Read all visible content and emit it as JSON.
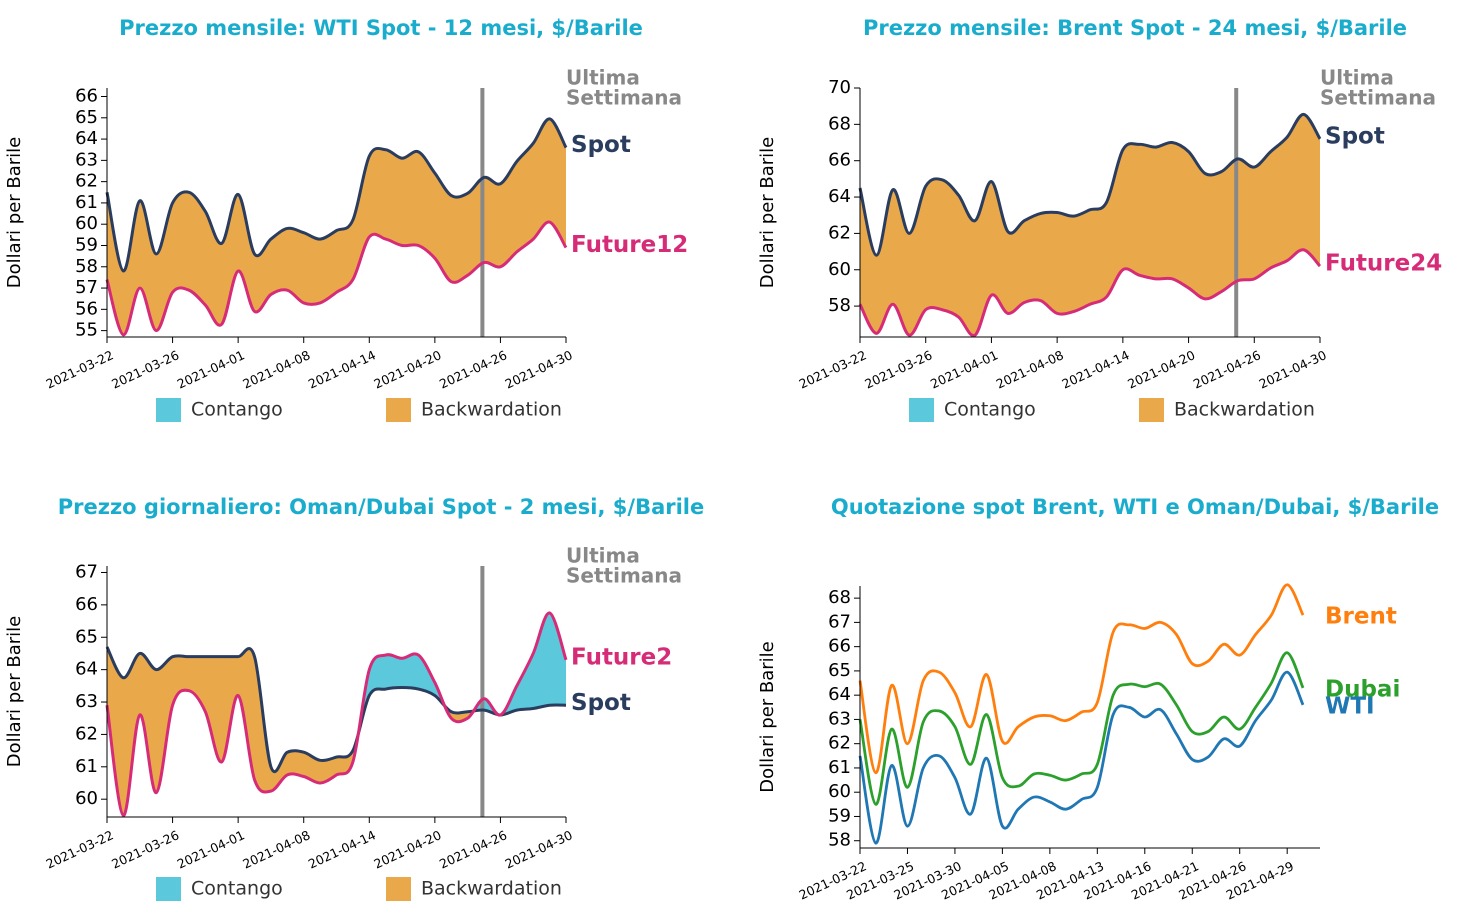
{
  "chart_data": [
    {
      "type": "spread",
      "title": "Prezzo mensile: WTI Spot - 12 mesi, $/Barile",
      "ylabel": "Dollari per Barile",
      "annotation": [
        "Ultima",
        "Settimana"
      ],
      "categories": [
        "2021-03-22",
        null,
        null,
        null,
        "2021-03-26",
        null,
        null,
        null,
        "2021-04-01",
        null,
        null,
        null,
        "2021-04-08",
        null,
        null,
        null,
        "2021-04-14",
        null,
        null,
        null,
        "2021-04-20",
        null,
        null,
        null,
        "2021-04-26",
        null,
        null,
        null,
        "2021-04-30"
      ],
      "series": [
        {
          "name": "Spot",
          "color": "#2b3d5e",
          "values": [
            61.5,
            57.8,
            61.1,
            58.6,
            61.0,
            61.5,
            60.6,
            59.1,
            61.4,
            58.6,
            59.3,
            59.8,
            59.6,
            59.3,
            59.7,
            60.2,
            63.2,
            63.5,
            63.1,
            63.4,
            62.4,
            61.35,
            61.45,
            62.2,
            61.9,
            62.95,
            63.8,
            64.95,
            63.6
          ]
        },
        {
          "name": "Future12",
          "color": "#d62c78",
          "values": [
            57.4,
            54.8,
            57.0,
            55.0,
            56.8,
            56.9,
            56.2,
            55.3,
            57.8,
            55.9,
            56.7,
            56.9,
            56.3,
            56.3,
            56.8,
            57.4,
            59.4,
            59.3,
            59.0,
            59.0,
            58.4,
            57.3,
            57.6,
            58.2,
            58.0,
            58.7,
            59.3,
            60.1,
            58.9
          ]
        }
      ],
      "legend": [
        {
          "label": "Contango",
          "color": "#5bc8dc"
        },
        {
          "label": "Backwardation",
          "color": "#e9a94b"
        }
      ],
      "ylim": [
        54.7,
        66.4
      ],
      "yticks": [
        55,
        56,
        57,
        58,
        59,
        60,
        61,
        62,
        63,
        64,
        65,
        66
      ]
    },
    {
      "type": "spread",
      "title": "Prezzo mensile: Brent Spot - 24 mesi, $/Barile",
      "ylabel": "Dollari per Barile",
      "annotation": [
        "Ultima",
        "Settimana"
      ],
      "categories": [
        "2021-03-22",
        null,
        null,
        null,
        "2021-03-26",
        null,
        null,
        null,
        "2021-04-01",
        null,
        null,
        null,
        "2021-04-08",
        null,
        null,
        null,
        "2021-04-14",
        null,
        null,
        null,
        "2021-04-20",
        null,
        null,
        null,
        "2021-04-26",
        null,
        null,
        null,
        "2021-04-30"
      ],
      "series": [
        {
          "name": "Spot",
          "color": "#2b3d5e",
          "values": [
            64.5,
            60.8,
            64.4,
            62.0,
            64.6,
            64.95,
            64.1,
            62.7,
            64.85,
            62.1,
            62.7,
            63.1,
            63.15,
            62.95,
            63.3,
            63.7,
            66.6,
            66.9,
            66.75,
            67.0,
            66.5,
            65.3,
            65.4,
            66.1,
            65.65,
            66.5,
            67.3,
            68.55,
            67.2
          ]
        },
        {
          "name": "Future24",
          "color": "#d62c78",
          "values": [
            58.1,
            56.5,
            58.1,
            56.4,
            57.8,
            57.8,
            57.4,
            56.4,
            58.6,
            57.6,
            58.2,
            58.3,
            57.6,
            57.7,
            58.1,
            58.5,
            60.0,
            59.7,
            59.5,
            59.5,
            59.0,
            58.4,
            58.8,
            59.4,
            59.5,
            60.1,
            60.5,
            61.1,
            60.2
          ]
        }
      ],
      "legend": [
        {
          "label": "Contango",
          "color": "#5bc8dc"
        },
        {
          "label": "Backwardation",
          "color": "#e9a94b"
        }
      ],
      "ylim": [
        56.3,
        70
      ],
      "yticks": [
        58,
        60,
        62,
        64,
        66,
        68,
        70
      ]
    },
    {
      "type": "spread",
      "title": "Prezzo giornaliero: Oman/Dubai Spot - 2 mesi, $/Barile",
      "ylabel": "Dollari per Barile",
      "annotation": [
        "Ultima",
        "Settimana"
      ],
      "categories": [
        "2021-03-22",
        null,
        null,
        null,
        "2021-03-26",
        null,
        null,
        null,
        "2021-04-01",
        null,
        null,
        null,
        "2021-04-08",
        null,
        null,
        null,
        "2021-04-14",
        null,
        null,
        null,
        "2021-04-20",
        null,
        null,
        null,
        "2021-04-26",
        null,
        null,
        null,
        "2021-04-30"
      ],
      "series": [
        {
          "name": "Spot",
          "color": "#2b3d5e",
          "values": [
            64.7,
            63.75,
            64.5,
            64.0,
            64.4,
            64.4,
            64.4,
            64.4,
            64.4,
            64.4,
            61.0,
            61.45,
            61.45,
            61.2,
            61.3,
            61.5,
            63.2,
            63.4,
            63.45,
            63.4,
            63.2,
            62.7,
            62.7,
            62.75,
            62.6,
            62.75,
            62.8,
            62.9,
            62.9
          ]
        },
        {
          "name": "Future2",
          "color": "#d62c78",
          "values": [
            62.9,
            59.5,
            62.6,
            60.2,
            62.9,
            63.35,
            62.7,
            61.15,
            63.2,
            60.6,
            60.25,
            60.75,
            60.7,
            60.5,
            60.75,
            61.15,
            64.0,
            64.45,
            64.35,
            64.45,
            63.6,
            62.5,
            62.5,
            63.1,
            62.6,
            63.5,
            64.5,
            65.75,
            64.3
          ]
        }
      ],
      "legend": [
        {
          "label": "Contango",
          "color": "#5bc8dc"
        },
        {
          "label": "Backwardation",
          "color": "#e9a94b"
        }
      ],
      "ylim": [
        59.45,
        67.2
      ],
      "yticks": [
        60,
        61,
        62,
        63,
        64,
        65,
        66,
        67
      ]
    },
    {
      "type": "line",
      "title": "Quotazione spot Brent, WTI e Oman/Dubai, $/Barile",
      "ylabel": "Dollari per Barile",
      "categories": [
        "2021-03-22",
        null,
        null,
        "2021-03-25",
        null,
        null,
        "2021-03-30",
        null,
        null,
        "2021-04-05",
        null,
        null,
        "2021-04-08",
        null,
        null,
        "2021-04-13",
        null,
        null,
        "2021-04-16",
        null,
        null,
        "2021-04-21",
        null,
        null,
        "2021-04-26",
        null,
        null,
        "2021-04-29",
        null
      ],
      "series": [
        {
          "name": "Brent",
          "color": "#ff7f0e",
          "values": [
            64.6,
            60.8,
            64.4,
            62.0,
            64.6,
            64.95,
            64.1,
            62.7,
            64.85,
            62.1,
            62.7,
            63.1,
            63.15,
            62.95,
            63.3,
            63.7,
            66.6,
            66.9,
            66.75,
            67.0,
            66.5,
            65.3,
            65.4,
            66.1,
            65.65,
            66.5,
            67.3,
            68.55,
            67.3
          ]
        },
        {
          "name": "Dubai",
          "color": "#2ca02c",
          "values": [
            63.0,
            59.5,
            62.6,
            60.2,
            62.9,
            63.35,
            62.7,
            61.15,
            63.2,
            60.6,
            60.25,
            60.75,
            60.7,
            60.5,
            60.75,
            61.15,
            64.0,
            64.45,
            64.35,
            64.45,
            63.6,
            62.5,
            62.5,
            63.1,
            62.6,
            63.5,
            64.5,
            65.75,
            64.3
          ]
        },
        {
          "name": "WTI",
          "color": "#1f77b4",
          "values": [
            61.5,
            57.9,
            61.1,
            58.6,
            61.0,
            61.5,
            60.6,
            59.1,
            61.4,
            58.6,
            59.3,
            59.8,
            59.6,
            59.3,
            59.7,
            60.2,
            63.2,
            63.5,
            63.1,
            63.4,
            62.4,
            61.35,
            61.45,
            62.2,
            61.9,
            62.95,
            63.8,
            64.95,
            63.6
          ]
        }
      ],
      "ylim": [
        57.7,
        68.5
      ],
      "yticks": [
        58,
        59,
        60,
        61,
        62,
        63,
        64,
        65,
        66,
        67,
        68
      ]
    }
  ]
}
